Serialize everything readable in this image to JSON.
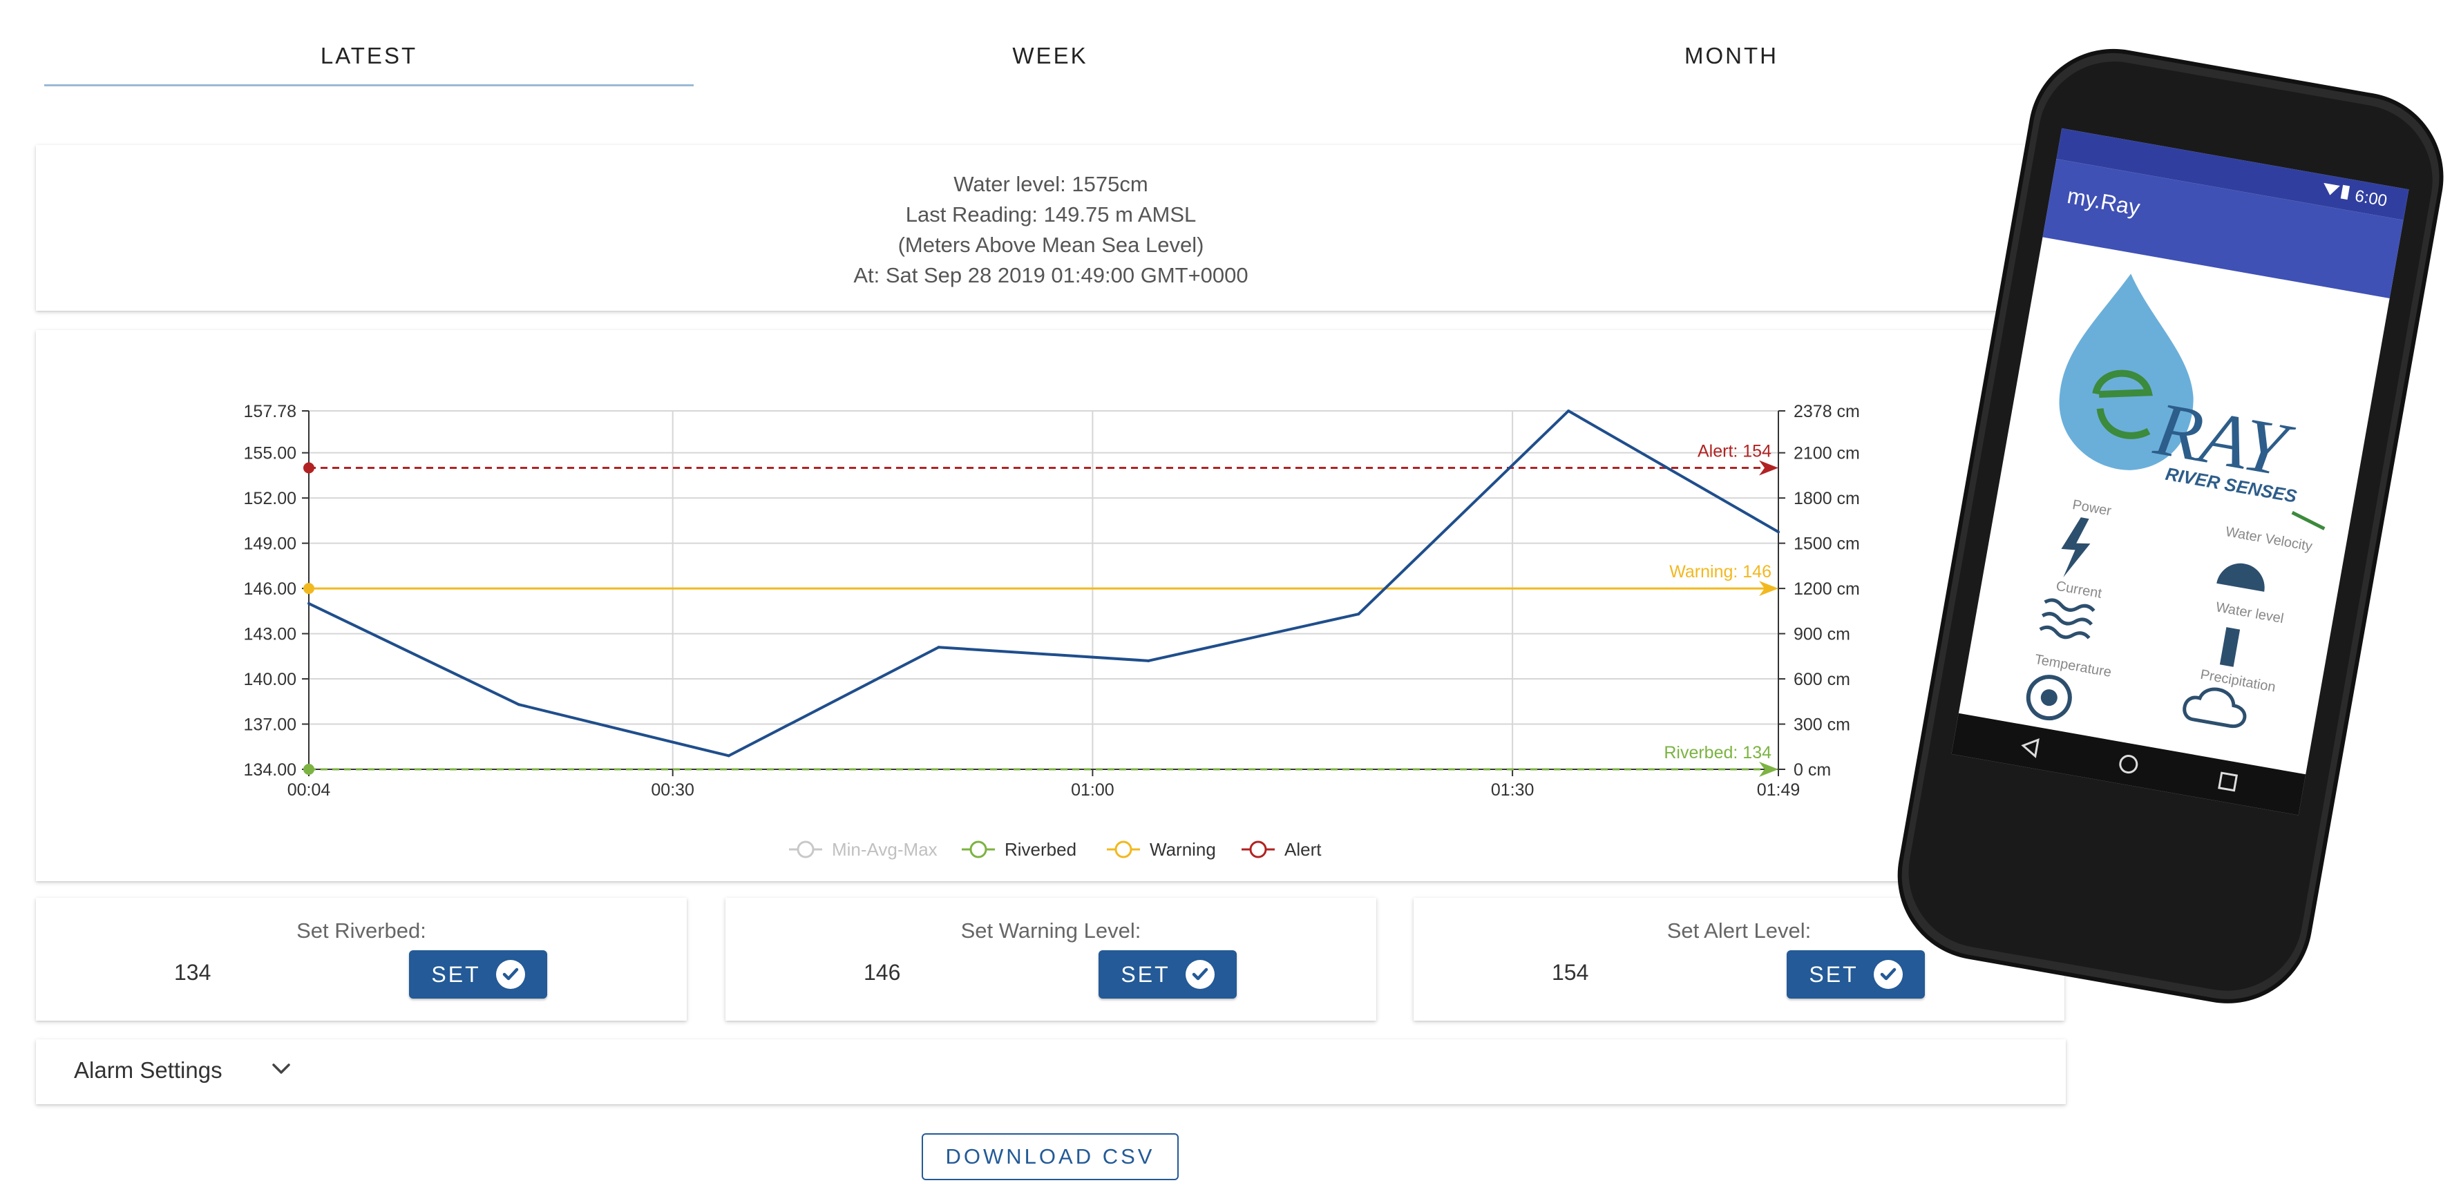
{
  "tabs": [
    {
      "label": "LATEST",
      "active": true
    },
    {
      "label": "WEEK",
      "active": false
    },
    {
      "label": "MONTH",
      "active": false
    }
  ],
  "info": {
    "lines": [
      "Water level: 1575cm",
      "Last Reading: 149.75 m AMSL",
      "(Meters Above Mean Sea Level)",
      "At: Sat Sep 28 2019 01:49:00 GMT+0000"
    ]
  },
  "chart_data": {
    "type": "line",
    "x": [
      "00:04",
      "00:19",
      "00:34",
      "00:49",
      "01:04",
      "01:19",
      "01:34",
      "01:49"
    ],
    "x_ticks": [
      "00:04",
      "00:30",
      "01:00",
      "01:30",
      "01:49"
    ],
    "series": [
      {
        "name": "",
        "color": "#1f4e8c",
        "x_minutes": [
          4,
          19,
          34,
          49,
          64,
          79,
          94,
          109
        ],
        "values": [
          145.0,
          138.3,
          134.9,
          142.1,
          141.2,
          144.3,
          157.78,
          149.75
        ]
      }
    ],
    "y_left_ticks": [
      "157.78",
      "155.00",
      "152.00",
      "149.00",
      "146.00",
      "143.00",
      "140.00",
      "137.00",
      "134.00"
    ],
    "y_right_ticks": [
      "2378 cm",
      "2100 cm",
      "1800 cm",
      "1500 cm",
      "1200 cm",
      "900 cm",
      "600 cm",
      "300 cm",
      "0 cm"
    ],
    "ylim": [
      134.0,
      157.78
    ],
    "thresholds": [
      {
        "name": "Alert",
        "label": "Alert: 154",
        "value": 154,
        "color": "#b22222",
        "dashed": true
      },
      {
        "name": "Warning",
        "label": "Warning: 146",
        "value": 146,
        "color": "#f2b81f",
        "dashed": false
      },
      {
        "name": "Riverbed",
        "label": "Riverbed: 134",
        "value": 134,
        "color": "#7cb342",
        "dashed": true
      }
    ],
    "legend": [
      {
        "label": "Min-Avg-Max",
        "color": "#c8c8c8",
        "muted": true
      },
      {
        "label": "Riverbed",
        "color": "#7cb342",
        "muted": false
      },
      {
        "label": "Warning",
        "color": "#f2b81f",
        "muted": false
      },
      {
        "label": "Alert",
        "color": "#b22222",
        "muted": false
      }
    ],
    "legend_position": "bottom",
    "grid": true
  },
  "settings": [
    {
      "label": "Set Riverbed:",
      "value": "134",
      "button": "SET"
    },
    {
      "label": "Set Warning Level:",
      "value": "146",
      "button": "SET"
    },
    {
      "label": "Set Alert Level:",
      "value": "154",
      "button": "SET"
    }
  ],
  "alarm": {
    "label": "Alarm Settings"
  },
  "download": {
    "label": "DOWNLOAD CSV"
  },
  "phone": {
    "app_title": "my.Ray",
    "time": "6:00",
    "logo_text": "RAY",
    "logo_tagline": "RIVER SENSES",
    "sensors": [
      {
        "label": "Power",
        "icon": "lightning-icon"
      },
      {
        "label": "Water Velocity",
        "icon": "gauge-icon"
      },
      {
        "label": "Current",
        "icon": "waves-icon"
      },
      {
        "label": "Water level",
        "icon": "water-level-icon"
      },
      {
        "label": "Temperature",
        "icon": "thermometer-icon"
      },
      {
        "label": "Precipitation",
        "icon": "rain-cloud-icon"
      }
    ],
    "colors": {
      "appbar": "#3f51b5",
      "statusbar": "#303f9f",
      "logo_blue": "#5aa6d6",
      "logo_green": "#3c8a3c"
    }
  }
}
